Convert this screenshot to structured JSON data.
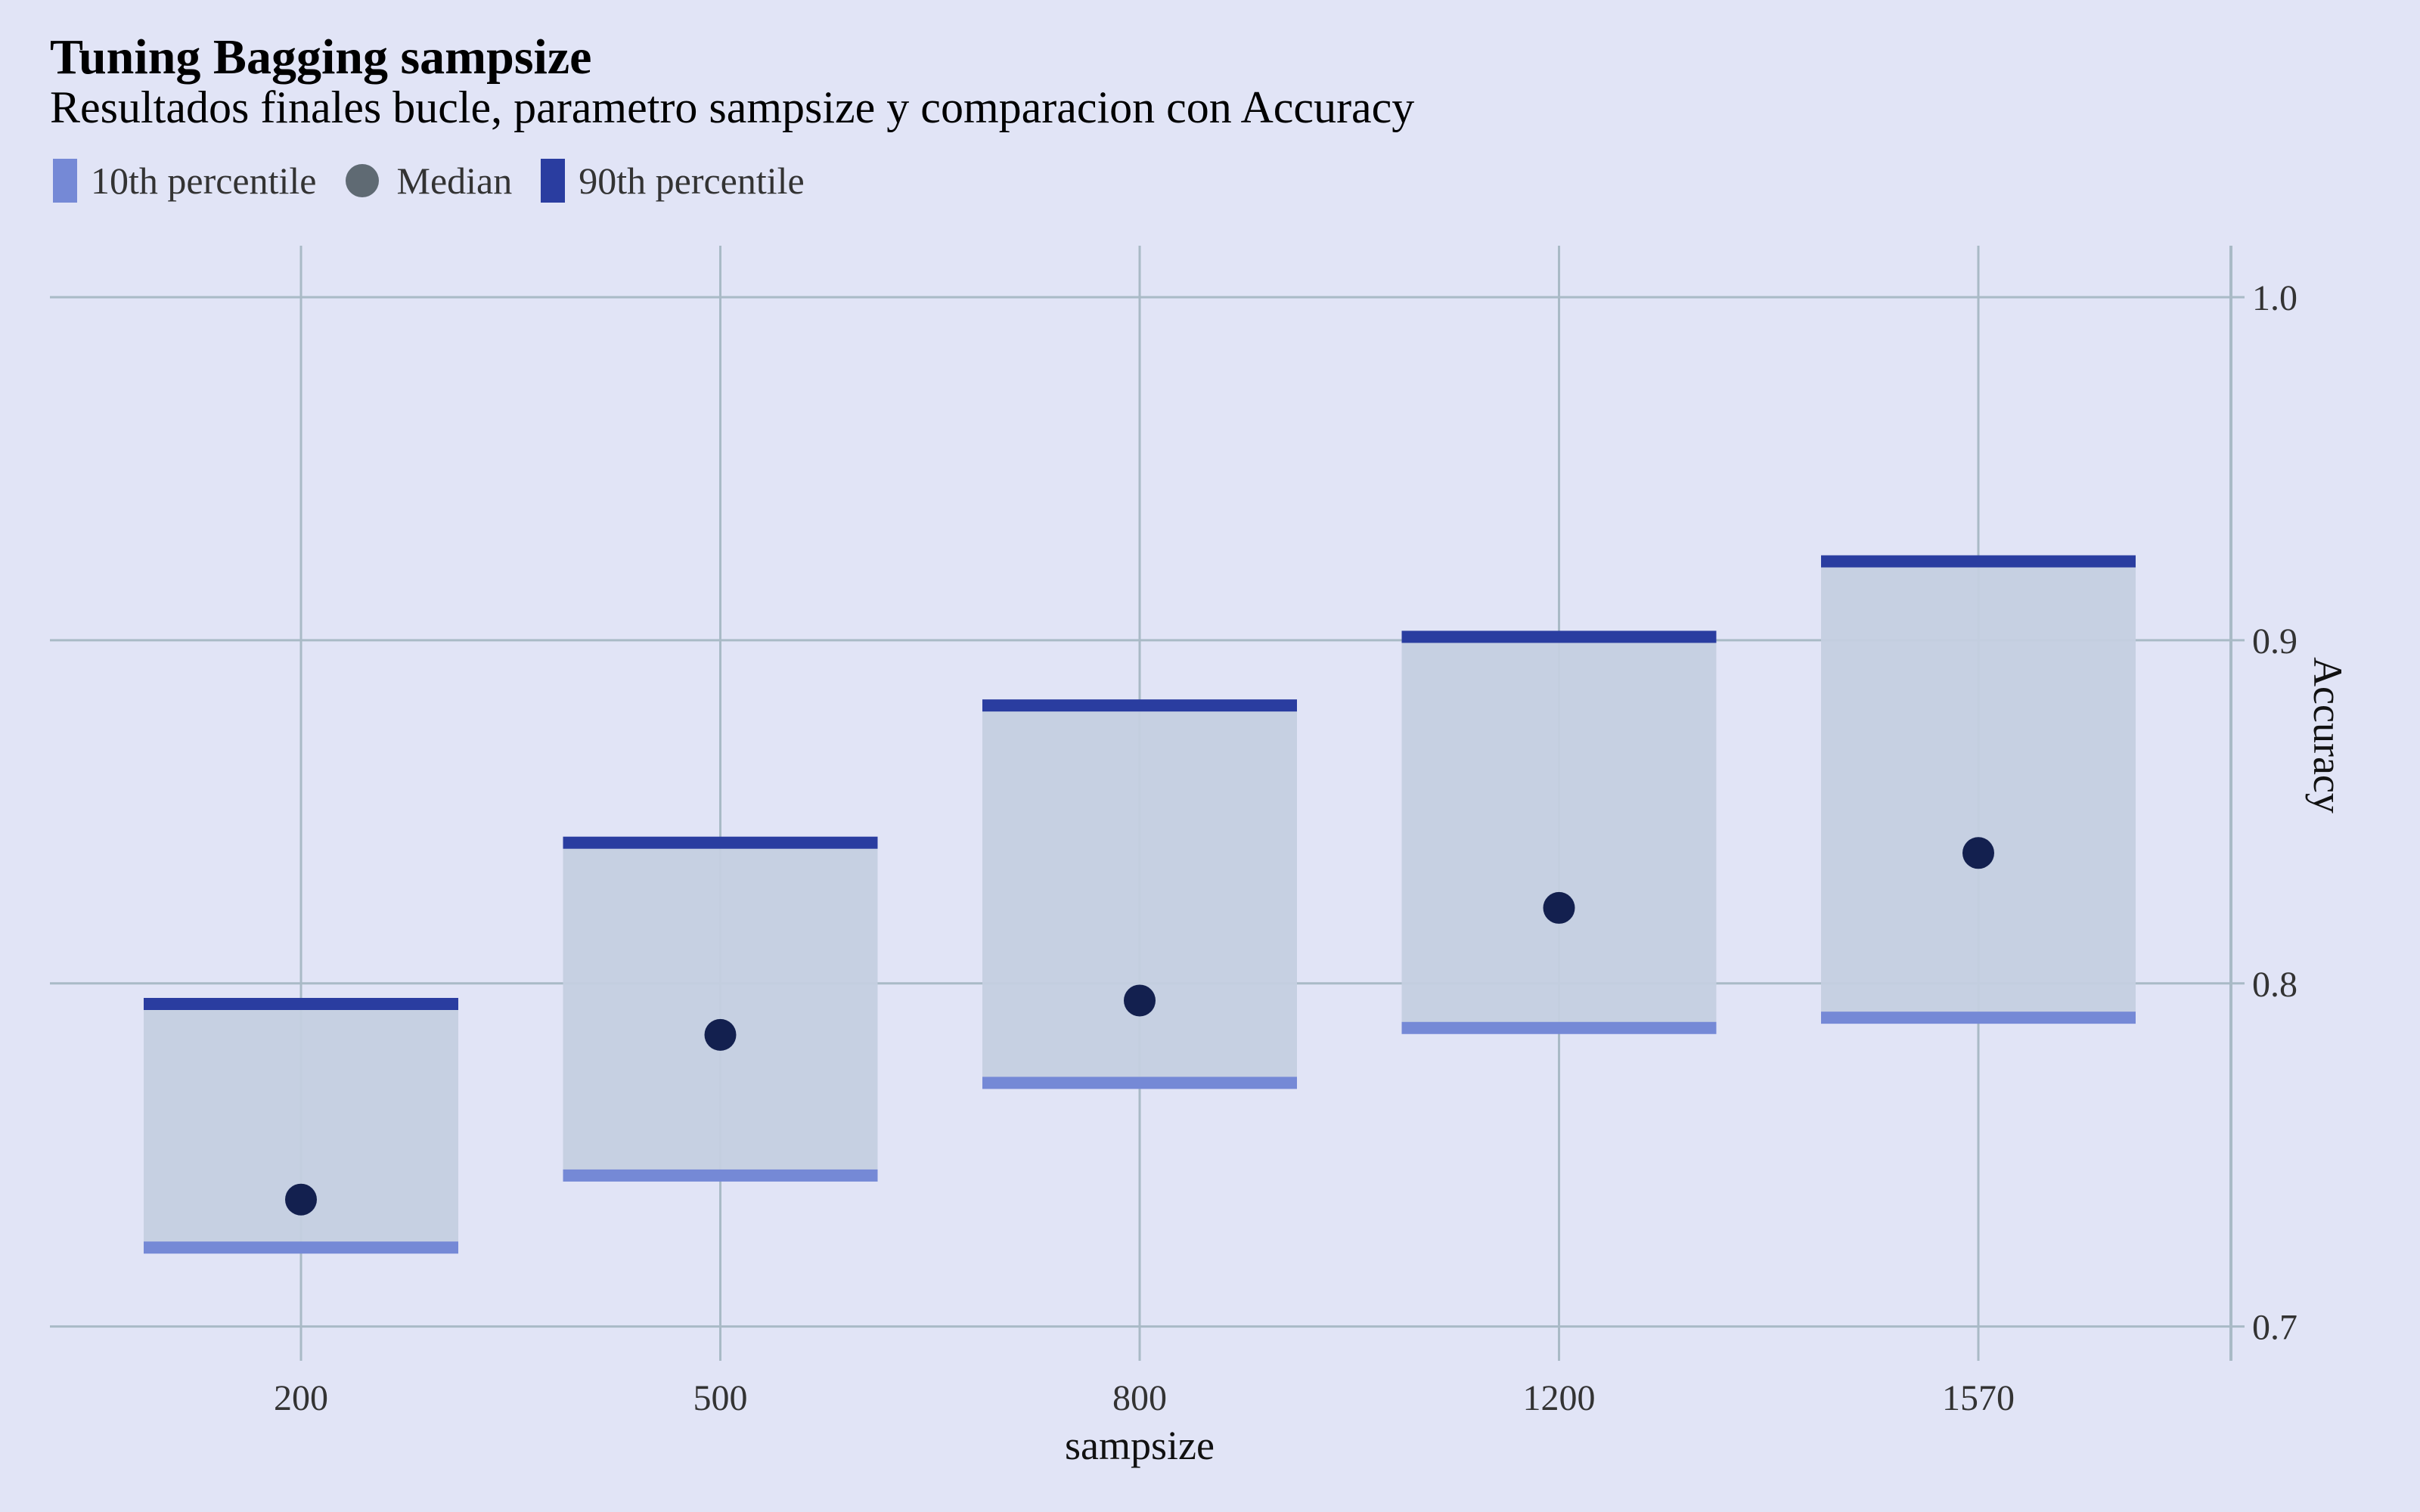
{
  "title": "Tuning Bagging sampsize",
  "subtitle": "Resultados finales bucle, parametro sampsize y comparacion con Accuracy",
  "legend": {
    "p10_label": "10th percentile",
    "median_label": "Median",
    "p90_label": "90th percentile"
  },
  "colors": {
    "background": "#e1e4f6",
    "grid": "#a9bac6",
    "band": "#c4cfe0",
    "p10": "#7589d6",
    "p90": "#2a3da0",
    "median_point": "#13204f",
    "median_legend": "#5f6a73"
  },
  "chart_data": {
    "type": "bar",
    "title": "Tuning Bagging sampsize",
    "subtitle": "Resultados finales bucle, parametro sampsize y comparacion con Accuracy",
    "xlabel": "sampsize",
    "ylabel": "Accuracy",
    "categories": [
      "200",
      "500",
      "800",
      "1200",
      "1570"
    ],
    "series": [
      {
        "name": "10th percentile",
        "values": [
          0.723,
          0.744,
          0.771,
          0.787,
          0.79
        ]
      },
      {
        "name": "Median",
        "values": [
          0.737,
          0.785,
          0.795,
          0.822,
          0.838
        ]
      },
      {
        "name": "90th percentile",
        "values": [
          0.794,
          0.841,
          0.881,
          0.901,
          0.923
        ]
      }
    ],
    "ylim": [
      0.69,
      1.015
    ],
    "yticks": [
      0.7,
      0.8,
      0.9,
      1.0
    ],
    "ytick_labels": [
      "0.7",
      "0.8",
      "0.9",
      "1.0"
    ],
    "y_axis_position": "right",
    "grid": true,
    "legend_position": "top-left"
  }
}
